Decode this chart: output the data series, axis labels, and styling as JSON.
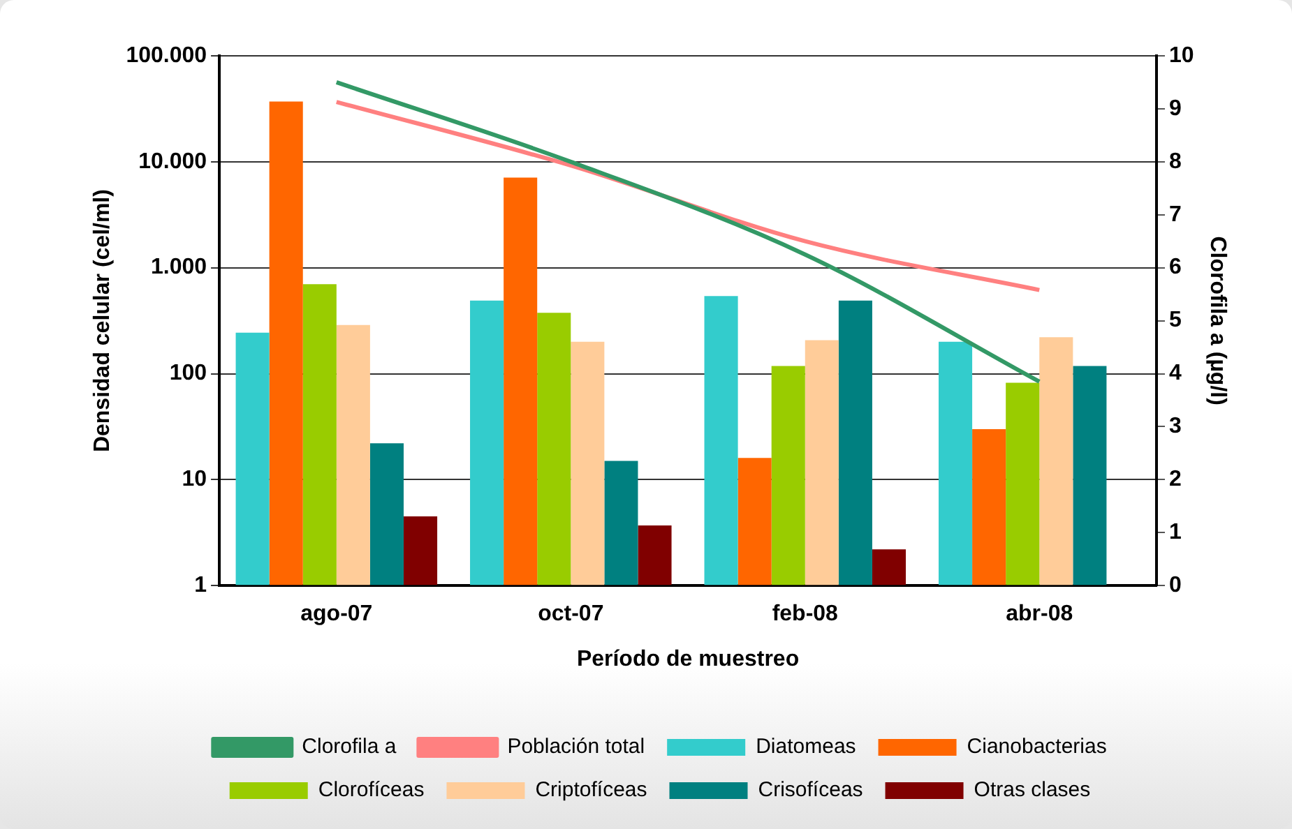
{
  "chart_data": {
    "type": "bar",
    "xlabel": "Período de muestreo",
    "ylabel": "Densidad celular (cel/ml)",
    "y2label": "Clorofila a (µg/l)",
    "categories": [
      "ago-07",
      "oct-07",
      "feb-08",
      "abr-08"
    ],
    "series": [
      {
        "name": "Diatomeas",
        "color": "#33cccc",
        "values": [
          244,
          489,
          540,
          200
        ]
      },
      {
        "name": "Cianobacterias",
        "color": "#ff6600",
        "values": [
          37000,
          7100,
          16,
          30
        ]
      },
      {
        "name": "Clorofíceas",
        "color": "#99cc00",
        "values": [
          700,
          375,
          118,
          82
        ]
      },
      {
        "name": "Criptofíceas",
        "color": "#ffcc99",
        "values": [
          288,
          200,
          207,
          221
        ]
      },
      {
        "name": "Crisofíceas",
        "color": "#008080",
        "values": [
          22,
          15,
          490,
          118
        ]
      },
      {
        "name": "Otras clases",
        "color": "#800000",
        "values": [
          4.5,
          3.7,
          2.2,
          null
        ]
      },
      {
        "name": "Clorofila a",
        "type": "line",
        "axis": "y2",
        "color": "#339966",
        "values": [
          9.5,
          8.0,
          6.25,
          3.85
        ]
      },
      {
        "name": "Población total",
        "type": "line",
        "axis": "y2",
        "color": "#ff8080",
        "values": [
          9.13,
          7.93,
          6.5,
          5.58
        ]
      }
    ],
    "log": "y",
    "ylim": [
      1,
      100000
    ],
    "yticks": [
      1,
      10,
      100,
      {
        "value": 1000,
        "label": "1.000"
      },
      {
        "value": 10000,
        "label": "10.000"
      },
      {
        "value": 100000,
        "label": "100.000"
      }
    ],
    "y2lim": [
      0,
      10
    ],
    "y2ticks": [
      0,
      1,
      2,
      3,
      4,
      5,
      6,
      7,
      8,
      9,
      10
    ],
    "grid": "y",
    "legend": "bottom",
    "marker": "none",
    "line_style": "solid"
  }
}
